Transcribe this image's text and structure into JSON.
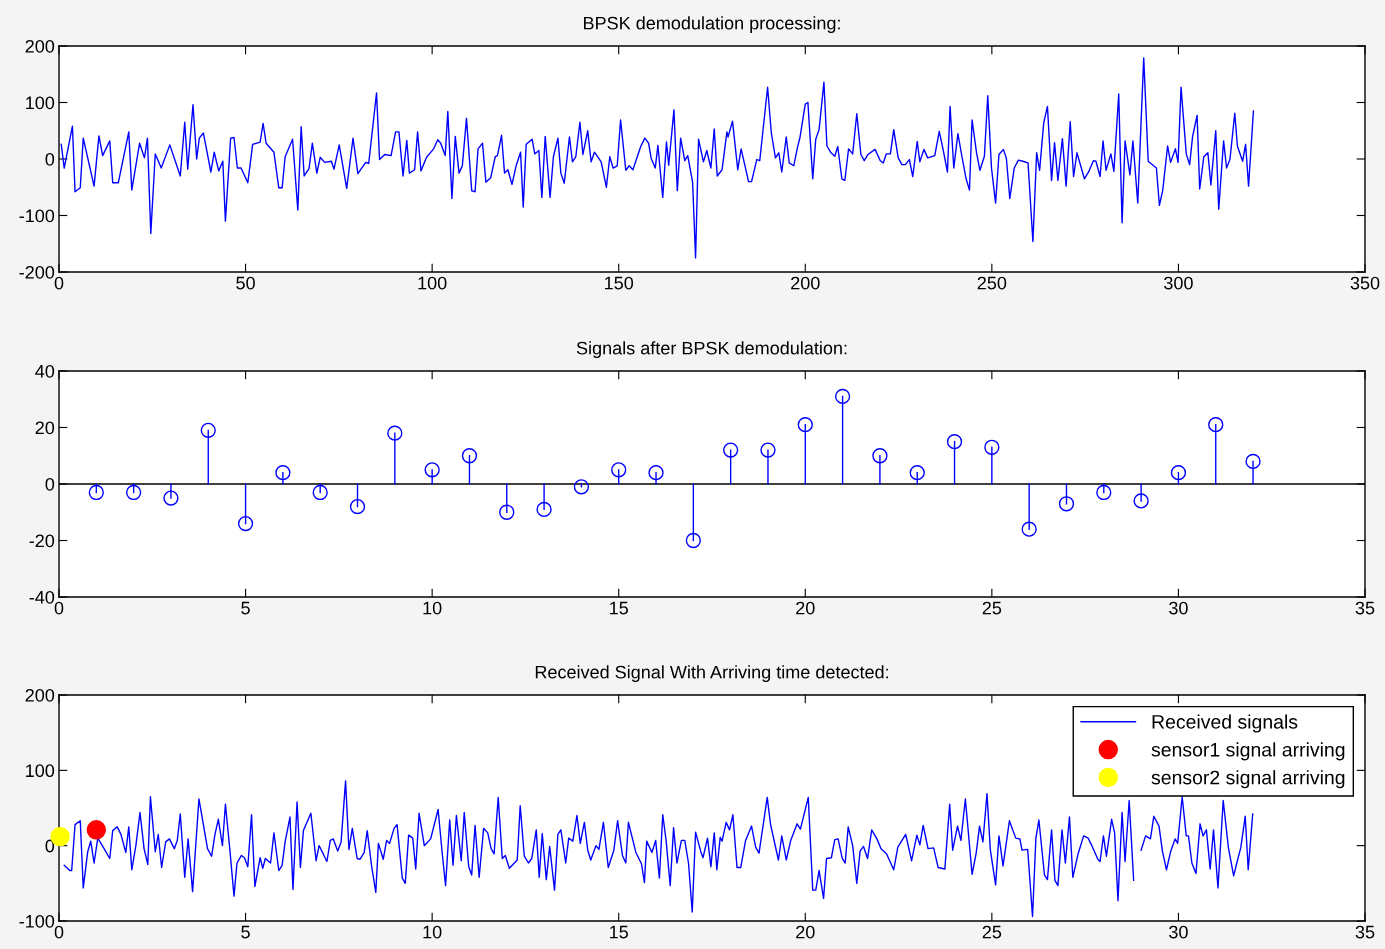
{
  "chart_data": [
    {
      "type": "line",
      "title": "BPSK demodulation processing:",
      "xlim": [
        0,
        350
      ],
      "xticks": [
        0,
        50,
        100,
        150,
        200,
        250,
        300,
        350
      ],
      "ylim": [
        -200,
        200
      ],
      "yticks": [
        -200,
        -100,
        0,
        100,
        200
      ],
      "grid": false,
      "legend": false,
      "marker": "none",
      "line_style": "solid",
      "series": [
        {
          "color": "#0000ff",
          "x": [
            0.6,
            1.4,
            3.6,
            4.3,
            5.7,
            6.5,
            9.4,
            10.7,
            11.7,
            13.6,
            14.4,
            15.9,
            18.7,
            19.5,
            21.6,
            22.9,
            23.7,
            24.6,
            25.8,
            27.4,
            29.7,
            32.5,
            33.7,
            34.5,
            35.9,
            36.9,
            37.6,
            38.7,
            40.7,
            41.6,
            42.8,
            43.9,
            44.6,
            46.0,
            46.9,
            47.8,
            48.8,
            50.6,
            51.9,
            53.9,
            54.7,
            55.5,
            57.6,
            58.9,
            59.8,
            60.6,
            62.6,
            64.0,
            64.9,
            65.7,
            67.0,
            67.9,
            69.1,
            70.0,
            71.2,
            73.0,
            73.7,
            75.1,
            77.1,
            78.8,
            80.1,
            82.2,
            83.0,
            85.1,
            85.9,
            87.3,
            89.0,
            90.2,
            91.1,
            92.2,
            93.2,
            93.9,
            95.3,
            96.1,
            97.0,
            98.5,
            100.4,
            101.5,
            102.3,
            103.5,
            104.2,
            105.3,
            106.2,
            107.2,
            108.1,
            109.2,
            110.6,
            111.5,
            112.3,
            113.5,
            114.4,
            115.7,
            116.9,
            117.5,
            118.6,
            119.4,
            120.3,
            121.4,
            122.5,
            123.7,
            124.4,
            125.2,
            126.8,
            127.5,
            128.6,
            129.4,
            130.3,
            131.6,
            132.5,
            133.7,
            134.5,
            135.4,
            136.8,
            137.6,
            138.5,
            139.6,
            140.4,
            141.7,
            142.6,
            143.5,
            145.3,
            146.7,
            147.6,
            148.5,
            149.6,
            150.5,
            151.9,
            152.8,
            153.8,
            155.9,
            157.0,
            158.0,
            158.7,
            159.8,
            160.5,
            161.8,
            162.8,
            163.4,
            164.8,
            165.7,
            166.6,
            167.7,
            168.5,
            169.8,
            170.6,
            171.4,
            172.7,
            173.6,
            174.7,
            175.6,
            176.4,
            177.7,
            179.0,
            179.3,
            180.5,
            181.9,
            182.8,
            184.8,
            185.6,
            187.0,
            187.8,
            189.9,
            190.9,
            192.0,
            192.9,
            193.7,
            194.9,
            195.7,
            196.9,
            197.9,
            198.6,
            200.0,
            200.7,
            202.0,
            202.8,
            203.7,
            205.0,
            205.8,
            206.9,
            207.9,
            208.7,
            209.8,
            210.6,
            211.6,
            212.7,
            213.8,
            214.9,
            215.8,
            216.8,
            218.7,
            220.1,
            220.9,
            221.7,
            222.8,
            223.7,
            224.9,
            225.9,
            226.8,
            227.9,
            228.8,
            230.0,
            230.7,
            231.8,
            232.8,
            234.7,
            235.9,
            236.9,
            238.1,
            238.8,
            239.8,
            240.9,
            242.1,
            243.1,
            244.0,
            244.7,
            245.9,
            246.8,
            248.0,
            248.9,
            249.9,
            251.0,
            251.9,
            253.1,
            253.9,
            254.8,
            256.0,
            257.1,
            258.3,
            259.7,
            261.0,
            262.0,
            262.8,
            263.9,
            264.9,
            266.0,
            266.8,
            267.7,
            268.9,
            269.9,
            271.0,
            271.9,
            272.8,
            274.8,
            276.0,
            277.2,
            277.9,
            279.0,
            279.8,
            280.6,
            281.9,
            282.7,
            284.0,
            284.9,
            285.7,
            287.0,
            287.8,
            289.1,
            290.7,
            291.9,
            294.1,
            294.9,
            295.8,
            297.1,
            297.9,
            299.2,
            299.9,
            300.7,
            302.1,
            303.0,
            303.8,
            305.0,
            305.7,
            306.8,
            307.9,
            308.7,
            310.0,
            310.8,
            312.1,
            312.9,
            313.8,
            315.1,
            315.8,
            317.2,
            318.0,
            318.8,
            320.1
          ],
          "values": [
            26,
            -16,
            58,
            -58,
            -51,
            37,
            -48,
            41,
            6,
            32,
            -42,
            -42,
            48,
            -55,
            28,
            2,
            37,
            -132,
            9,
            -16,
            25,
            -30,
            65,
            -18,
            96,
            0,
            37,
            46,
            -23,
            12,
            -21,
            -4,
            -110,
            37,
            38,
            -16,
            -16,
            -42,
            26,
            30,
            63,
            28,
            12,
            -51,
            -51,
            4,
            35,
            -90,
            57,
            -30,
            -17,
            28,
            -25,
            3,
            -6,
            -4,
            -18,
            25,
            -52,
            37,
            -26,
            -6,
            -8,
            117,
            -1,
            8,
            6,
            48,
            48,
            -30,
            33,
            -25,
            -19,
            48,
            -21,
            3,
            18,
            34,
            28,
            6,
            84,
            -70,
            40,
            -25,
            -12,
            72,
            -56,
            -58,
            18,
            28,
            -41,
            -33,
            4,
            6,
            42,
            -25,
            -19,
            -45,
            -12,
            12,
            -85,
            26,
            35,
            9,
            15,
            -68,
            40,
            -68,
            4,
            37,
            -25,
            -43,
            39,
            -5,
            4,
            65,
            8,
            50,
            -5,
            12,
            -5,
            -50,
            4,
            -16,
            -12,
            69,
            -20,
            -12,
            -19,
            22,
            37,
            28,
            1,
            -16,
            24,
            -68,
            30,
            -11,
            87,
            -56,
            37,
            -3,
            6,
            -41,
            -175,
            35,
            -5,
            15,
            -16,
            53,
            -30,
            -19,
            48,
            39,
            67,
            -19,
            18,
            -40,
            -40,
            -1,
            -3,
            127,
            46,
            2,
            11,
            -23,
            39,
            -7,
            -12,
            20,
            39,
            97,
            100,
            -35,
            35,
            52,
            136,
            23,
            11,
            5,
            22,
            -35,
            -38,
            18,
            9,
            80,
            8,
            -3,
            8,
            17,
            -3,
            -7,
            9,
            9,
            52,
            2,
            -10,
            -10,
            -1,
            -31,
            31,
            -5,
            17,
            2,
            6,
            49,
            18,
            -23,
            93,
            -16,
            45,
            0,
            -35,
            -55,
            69,
            11,
            -20,
            5,
            112,
            -16,
            -78,
            8,
            17,
            1,
            -70,
            -16,
            -2,
            -4,
            -7,
            -146,
            11,
            -20,
            64,
            93,
            -38,
            29,
            -38,
            36,
            -48,
            66,
            -31,
            11,
            -35,
            -22,
            -3,
            -4,
            -31,
            32,
            -20,
            9,
            -22,
            115,
            -113,
            32,
            -28,
            32,
            -78,
            179,
            -4,
            -16,
            -82,
            -55,
            23,
            -6,
            18,
            -6,
            127,
            9,
            -10,
            40,
            77,
            -53,
            4,
            11,
            -46,
            50,
            -89,
            32,
            -16,
            -1,
            81,
            23,
            -4,
            26,
            -48,
            85
          ]
        }
      ]
    },
    {
      "type": "lollipop",
      "title": "Signals after BPSK demodulation:",
      "xlim": [
        0,
        35
      ],
      "xticks": [
        0,
        5,
        10,
        15,
        20,
        25,
        30,
        35
      ],
      "ylim": [
        -40,
        40
      ],
      "yticks": [
        -40,
        -20,
        0,
        20,
        40
      ],
      "grid": false,
      "legend": false,
      "marker": "circle",
      "x": [
        1,
        2,
        3,
        4,
        5,
        6,
        7,
        8,
        9,
        10,
        11,
        12,
        13,
        14,
        15,
        16,
        17,
        18,
        19,
        20,
        21,
        22,
        23,
        24,
        25,
        26,
        27,
        28,
        29,
        30,
        31,
        32
      ],
      "series": [
        {
          "color": "#0000ff",
          "values": [
            -3,
            -3,
            -5,
            19,
            -14,
            4,
            -3,
            -8,
            18,
            5,
            10,
            -10,
            -9,
            -1,
            5,
            4,
            -20,
            12,
            12,
            21,
            31,
            10,
            4,
            15,
            13,
            -16,
            -7,
            -3,
            -6,
            4,
            21,
            8
          ]
        }
      ],
      "ref_lines": [
        {
          "axis": "y",
          "value": 0,
          "color": "#000000"
        }
      ]
    },
    {
      "type": "line",
      "title": "Received Signal With Arriving time detected:",
      "xlim": [
        0,
        35
      ],
      "xticks": [
        0,
        5,
        10,
        15,
        20,
        25,
        30,
        35
      ],
      "ylim": [
        -100,
        200
      ],
      "yticks": [
        -100,
        0,
        100,
        200
      ],
      "grid": false,
      "legend": "top right",
      "line_style": "solid",
      "series": [
        {
          "name": "Received signals",
          "color": "#0000ff",
          "marker": "none",
          "x": [
            0.14,
            0.29,
            0.34,
            0.43,
            0.57,
            0.65,
            0.77,
            0.85,
            0.94,
            1.04,
            1.22,
            1.36,
            1.44,
            1.56,
            1.66,
            1.79,
            1.87,
            1.95,
            2.06,
            2.17,
            2.28,
            2.38,
            2.45,
            2.58,
            2.66,
            2.75,
            2.86,
            2.96,
            3.09,
            3.17,
            3.25,
            3.37,
            3.46,
            3.58,
            3.75,
            3.98,
            4.09,
            4.18,
            4.27,
            4.38,
            4.46,
            4.58,
            4.69,
            4.77,
            4.89,
            4.97,
            5.06,
            5.16,
            5.25,
            5.39,
            5.46,
            5.53,
            5.67,
            5.76,
            5.89,
            5.98,
            6.06,
            6.19,
            6.27,
            6.38,
            6.47,
            6.55,
            6.75,
            6.89,
            6.97,
            7.18,
            7.27,
            7.35,
            7.47,
            7.56,
            7.68,
            7.77,
            7.86,
            7.99,
            8.07,
            8.18,
            8.26,
            8.38,
            8.49,
            8.56,
            8.69,
            8.78,
            8.86,
            8.98,
            9.06,
            9.2,
            9.28,
            9.37,
            9.48,
            9.56,
            9.65,
            9.79,
            9.96,
            10.16,
            10.27,
            10.36,
            10.47,
            10.56,
            10.65,
            10.78,
            10.86,
            10.98,
            11.06,
            11.15,
            11.26,
            11.38,
            11.49,
            11.58,
            11.66,
            11.77,
            11.88,
            11.96,
            12.07,
            12.28,
            12.36,
            12.47,
            12.58,
            12.67,
            12.79,
            12.87,
            12.95,
            13.06,
            13.15,
            13.28,
            13.37,
            13.45,
            13.58,
            13.66,
            13.77,
            13.88,
            13.97,
            14.08,
            14.17,
            14.25,
            14.39,
            14.47,
            14.59,
            14.72,
            14.87,
            14.97,
            15.1,
            15.19,
            15.26,
            15.46,
            15.61,
            15.69,
            15.75,
            15.89,
            15.99,
            16.09,
            16.18,
            16.27,
            16.38,
            16.47,
            16.56,
            16.68,
            16.77,
            16.87,
            16.97,
            17.06,
            17.2,
            17.26,
            17.38,
            17.47,
            17.56,
            17.63,
            17.72,
            17.77,
            17.88,
            17.97,
            18.06,
            18.17,
            18.27,
            18.4,
            18.56,
            18.67,
            18.76,
            18.98,
            19.07,
            19.28,
            19.37,
            19.49,
            19.61,
            19.78,
            19.87,
            20.08,
            20.2,
            20.28,
            20.37,
            20.49,
            20.57,
            20.7,
            20.79,
            20.88,
            20.99,
            21.07,
            21.15,
            21.27,
            21.38,
            21.47,
            21.56,
            21.67,
            21.78,
            21.92,
            22.03,
            22.18,
            22.37,
            22.48,
            22.69,
            22.85,
            22.99,
            23.07,
            23.16,
            23.29,
            23.44,
            23.56,
            23.74,
            23.87,
            23.95,
            24.08,
            24.17,
            24.29,
            24.47,
            24.58,
            24.67,
            24.76,
            24.87,
            24.96,
            25.1,
            25.19,
            25.3,
            25.47,
            25.64,
            25.75,
            25.81,
            25.96,
            26.09,
            26.18,
            26.26,
            26.41,
            26.49,
            26.6,
            26.69,
            26.77,
            26.88,
            26.97,
            27.08,
            27.17,
            27.31,
            27.46,
            27.58,
            27.69,
            27.84,
            27.9,
            27.99,
            28.07,
            28.21,
            28.29,
            28.38,
            28.49,
            28.57,
            28.68,
            28.8,
            28.91,
            29.0,
            29.12,
            29.25,
            29.34,
            29.48,
            29.57,
            29.68,
            29.79,
            29.91,
            29.98,
            30.1,
            30.21,
            30.27,
            30.36,
            30.47,
            30.58,
            30.66,
            30.75,
            30.85,
            30.94,
            31.06,
            31.2,
            31.34,
            31.48,
            31.6,
            31.67,
            31.79,
            31.87,
            31.99
          ],
          "values": [
            -26,
            -33,
            -33,
            28,
            33,
            -56,
            -8,
            6,
            -23,
            10,
            -5,
            -17,
            20,
            25,
            15,
            -9,
            25,
            -32,
            0,
            44,
            -4,
            -25,
            65,
            -8,
            15,
            -29,
            5,
            9,
            -4,
            7,
            42,
            -42,
            9,
            -61,
            62,
            -4,
            -14,
            15,
            35,
            0,
            55,
            -6,
            -67,
            -23,
            -13,
            -16,
            -28,
            41,
            -54,
            -16,
            -30,
            -17,
            -23,
            17,
            -33,
            -26,
            5,
            38,
            -58,
            58,
            -29,
            20,
            43,
            -20,
            0,
            -21,
            7,
            9,
            -7,
            5,
            86,
            -5,
            23,
            -17,
            -18,
            -9,
            20,
            -28,
            -62,
            3,
            -18,
            7,
            3,
            23,
            28,
            -43,
            -50,
            14,
            10,
            -31,
            43,
            0,
            9,
            48,
            -10,
            -53,
            34,
            -26,
            40,
            -20,
            44,
            -28,
            -39,
            27,
            -42,
            23,
            17,
            -4,
            -11,
            64,
            -17,
            -13,
            -30,
            -19,
            53,
            -14,
            -23,
            -17,
            21,
            -42,
            16,
            -45,
            -1,
            -59,
            15,
            21,
            -23,
            10,
            6,
            40,
            3,
            31,
            -6,
            -19,
            0,
            -5,
            31,
            -29,
            -6,
            33,
            -13,
            -23,
            31,
            -9,
            -24,
            -49,
            6,
            -9,
            7,
            -43,
            41,
            7,
            -53,
            24,
            -23,
            7,
            7,
            -23,
            -88,
            18,
            -8,
            -16,
            10,
            -28,
            17,
            -32,
            11,
            6,
            31,
            21,
            41,
            -29,
            -29,
            7,
            26,
            -2,
            -10,
            64,
            28,
            -19,
            13,
            -19,
            7,
            29,
            22,
            64,
            -59,
            -59,
            -33,
            -70,
            -17,
            -16,
            8,
            9,
            -17,
            -23,
            25,
            0,
            -50,
            -7,
            -1,
            -17,
            21,
            9,
            -4,
            -11,
            -32,
            -2,
            15,
            -20,
            14,
            1,
            27,
            -4,
            -3,
            -29,
            -31,
            55,
            -6,
            26,
            7,
            62,
            -38,
            -10,
            26,
            5,
            69,
            -6,
            -52,
            13,
            -27,
            33,
            10,
            9,
            -6,
            -5,
            -94,
            10,
            34,
            -39,
            -45,
            21,
            -46,
            -53,
            21,
            -23,
            38,
            -42,
            -11,
            13,
            10,
            -1,
            -18,
            -21,
            13,
            -14,
            35,
            17,
            -73,
            44,
            -21,
            60,
            -46,
            null,
            -6,
            13,
            9,
            39,
            26,
            -7,
            -32,
            -8,
            9,
            3,
            65,
            13,
            13,
            -23,
            -37,
            29,
            13,
            21,
            -31,
            21,
            -56,
            60,
            -3,
            -40,
            -16,
            -3,
            39,
            -32,
            42
          ]
        },
        {
          "name": "sensor1 signal arriving",
          "type": "scatter",
          "color": "#ff0000",
          "marker": "circle",
          "x": [
            1.0
          ],
          "values": [
            21
          ]
        },
        {
          "name": "sensor2 signal arriving",
          "type": "scatter",
          "color": "#ffff00",
          "marker": "circle",
          "x": [
            0.03
          ],
          "values": [
            12
          ]
        }
      ]
    }
  ]
}
